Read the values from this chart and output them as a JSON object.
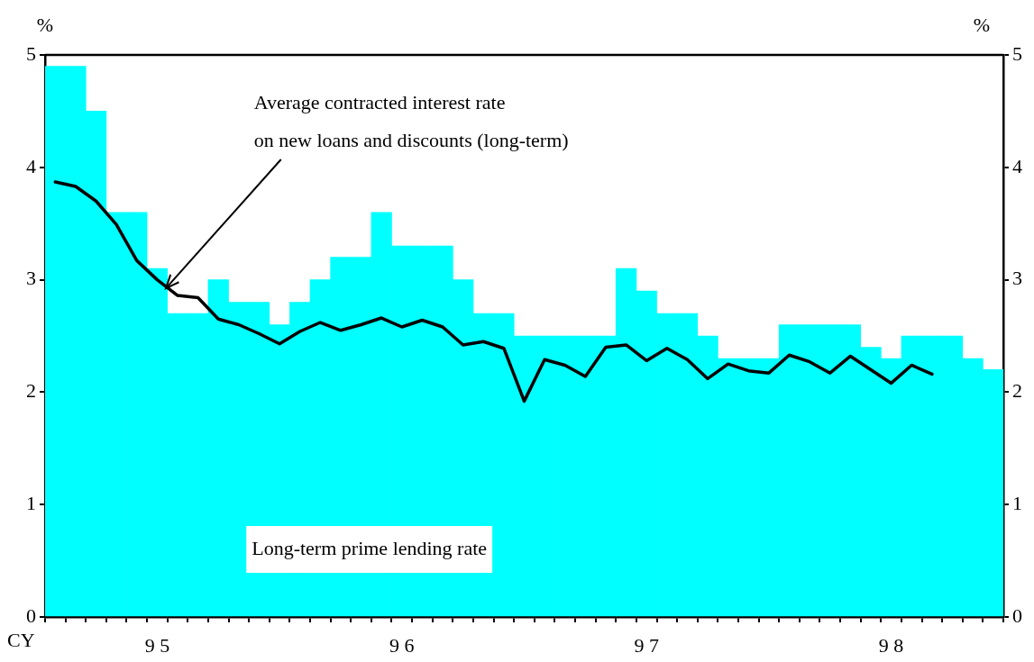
{
  "chart_data": {
    "type": "bar",
    "xlabel": "CY",
    "ylabel": "%",
    "y2label": "%",
    "categories": [
      null,
      null,
      null,
      null,
      null,
      "9 5",
      null,
      null,
      null,
      null,
      null,
      null,
      null,
      null,
      null,
      null,
      null,
      "9 6",
      null,
      null,
      null,
      null,
      null,
      null,
      null,
      null,
      null,
      null,
      null,
      "9 7",
      null,
      null,
      null,
      null,
      null,
      null,
      null,
      null,
      null,
      null,
      null,
      "9 8",
      null,
      null,
      null,
      null,
      null
    ],
    "series": [
      {
        "name": "Long-term prime lending rate",
        "color": "#00ffff",
        "values": [
          4.9,
          4.9,
          4.5,
          3.6,
          3.6,
          3.1,
          2.7,
          2.7,
          3.0,
          2.8,
          2.8,
          2.6,
          2.8,
          3.0,
          3.2,
          3.2,
          3.6,
          3.3,
          3.3,
          3.3,
          3.0,
          2.7,
          2.7,
          2.5,
          2.5,
          2.5,
          2.5,
          2.5,
          3.1,
          2.9,
          2.7,
          2.7,
          2.5,
          2.3,
          2.3,
          2.3,
          2.6,
          2.6,
          2.6,
          2.6,
          2.4,
          2.3,
          2.5,
          2.5,
          2.5,
          2.3,
          2.2
        ]
      },
      {
        "type": "line",
        "name": "Average contracted interest rate\non new loans and discounts (long-term)",
        "color": "#000000",
        "values": [
          3.87,
          3.83,
          3.7,
          3.49,
          3.17,
          3.0,
          2.86,
          2.84,
          2.65,
          2.6,
          2.52,
          2.43,
          2.54,
          2.62,
          2.55,
          2.6,
          2.66,
          2.58,
          2.64,
          2.58,
          2.42,
          2.45,
          2.39,
          1.92,
          2.29,
          2.24,
          2.14,
          2.4,
          2.42,
          2.28,
          2.39,
          2.29,
          2.12,
          2.25,
          2.19,
          2.17,
          2.33,
          2.27,
          2.17,
          2.32,
          2.2,
          2.08,
          2.24,
          2.16,
          null,
          null,
          null
        ]
      }
    ],
    "ylim": [
      0,
      5
    ],
    "yticks": [
      0,
      1,
      2,
      3,
      4,
      5
    ],
    "y2lim": [
      0,
      5
    ],
    "y2ticks": [
      0,
      1,
      2,
      3,
      4,
      5
    ],
    "grid": false,
    "legend": false,
    "marker": "none",
    "line_style": "solid"
  }
}
